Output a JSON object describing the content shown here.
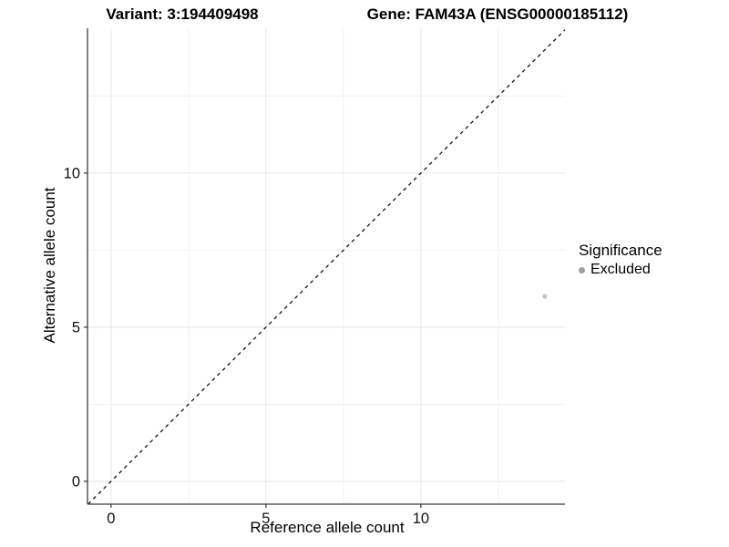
{
  "header": {
    "variant_title": "Variant: 3:194409498",
    "gene_title": "Gene: FAM43A (ENSG00000185112)"
  },
  "chart_data": {
    "type": "scatter",
    "xlabel": "Reference allele count",
    "ylabel": "Alternative allele count",
    "x_ticks": [
      0,
      5,
      10
    ],
    "y_ticks": [
      0,
      5,
      10
    ],
    "x_minor_ticks": [
      2.5,
      7.5,
      12.5
    ],
    "y_minor_ticks": [
      2.5,
      7.5,
      12.5
    ],
    "xlim": [
      -0.76,
      14.65
    ],
    "ylim": [
      -0.74,
      14.7
    ],
    "grid": true,
    "identity_line": {
      "style": "dashed",
      "color": "#000000",
      "from": -0.74,
      "to": 14.65
    },
    "series": [
      {
        "name": "Excluded",
        "color": "#c5c5c5",
        "points": [
          {
            "x": 14,
            "y": 6
          }
        ]
      }
    ],
    "legend": {
      "title": "Significance",
      "position": "right",
      "items": [
        {
          "label": "Excluded",
          "color": "#9e9e9e",
          "marker": "circle"
        }
      ]
    }
  },
  "colors": {
    "grid_major": "#e6e6e6",
    "grid_minor": "#f0f0f0",
    "axis_line": "#3c3c3c",
    "tick_mark": "#333333",
    "tick_label": "#111111"
  }
}
